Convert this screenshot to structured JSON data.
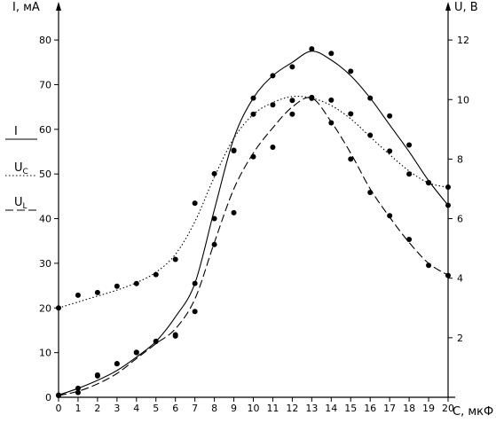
{
  "chart_data": {
    "type": "line",
    "xlabel": "С, мкФ",
    "y_left_label": "I, мА",
    "y_right_label": "U, В",
    "x_ticks": [
      0,
      1,
      2,
      3,
      4,
      5,
      6,
      7,
      8,
      9,
      10,
      11,
      12,
      13,
      14,
      15,
      16,
      17,
      18,
      19,
      20
    ],
    "y_left_ticks": [
      10,
      20,
      30,
      40,
      50,
      60,
      70,
      80
    ],
    "y_right_ticks": [
      2,
      4,
      6,
      8,
      10,
      12
    ],
    "xlim": [
      0,
      20
    ],
    "ylim_left": [
      0,
      83
    ],
    "ylim_right": [
      0,
      12.45
    ],
    "grid": false,
    "legend_position": "left",
    "series": [
      {
        "name": "I",
        "axis": "left",
        "line_style": "solid",
        "points": [
          [
            0,
            0.5
          ],
          [
            1,
            2
          ],
          [
            2,
            4.8
          ],
          [
            3,
            7.5
          ],
          [
            4,
            10
          ],
          [
            5,
            12.5
          ],
          [
            6,
            14
          ],
          [
            7,
            25.5
          ],
          [
            8,
            40
          ],
          [
            9,
            55.3
          ],
          [
            10,
            67
          ],
          [
            11,
            72
          ],
          [
            12,
            74
          ],
          [
            13,
            78
          ],
          [
            14,
            77
          ],
          [
            15,
            73
          ],
          [
            16,
            67
          ],
          [
            17,
            63
          ],
          [
            18,
            56.5
          ],
          [
            19,
            48
          ],
          [
            20,
            43
          ]
        ],
        "curve": [
          [
            0,
            0.5
          ],
          [
            1,
            2
          ],
          [
            2,
            3.8
          ],
          [
            3,
            6
          ],
          [
            4,
            9
          ],
          [
            5,
            12.5
          ],
          [
            6,
            18
          ],
          [
            7,
            25.5
          ],
          [
            8,
            42
          ],
          [
            9,
            58
          ],
          [
            10,
            67
          ],
          [
            11,
            72
          ],
          [
            12,
            75
          ],
          [
            13,
            77.5
          ],
          [
            14,
            75.5
          ],
          [
            15,
            72
          ],
          [
            16,
            67
          ],
          [
            17,
            61
          ],
          [
            18,
            55
          ],
          [
            19,
            48.5
          ],
          [
            20,
            43
          ]
        ]
      },
      {
        "name": "Uc",
        "axis": "right",
        "line_style": "dotted",
        "points": [
          [
            0,
            3
          ],
          [
            1,
            3.43
          ],
          [
            2,
            3.52
          ],
          [
            3,
            3.73
          ],
          [
            4,
            3.82
          ],
          [
            5,
            4.12
          ],
          [
            6,
            4.63
          ],
          [
            7,
            6.52
          ],
          [
            8,
            7.51
          ],
          [
            9,
            8.28
          ],
          [
            10,
            9.51
          ],
          [
            11,
            9.82
          ],
          [
            12,
            9.97
          ],
          [
            13,
            10.07
          ],
          [
            14,
            9.98
          ],
          [
            15,
            9.52
          ],
          [
            16,
            8.8
          ],
          [
            17,
            8.27
          ],
          [
            18,
            7.5
          ],
          [
            19,
            7.21
          ],
          [
            20,
            7.06
          ]
        ],
        "curve": [
          [
            0,
            3
          ],
          [
            1,
            3.2
          ],
          [
            2,
            3.4
          ],
          [
            3,
            3.6
          ],
          [
            4,
            3.85
          ],
          [
            5,
            4.2
          ],
          [
            6,
            4.8
          ],
          [
            7,
            5.9
          ],
          [
            8,
            7.4
          ],
          [
            9,
            8.7
          ],
          [
            10,
            9.5
          ],
          [
            11,
            9.9
          ],
          [
            12,
            10.1
          ],
          [
            13,
            10.05
          ],
          [
            14,
            9.8
          ],
          [
            15,
            9.35
          ],
          [
            16,
            8.75
          ],
          [
            17,
            8.15
          ],
          [
            18,
            7.6
          ],
          [
            19,
            7.2
          ],
          [
            20,
            7.05
          ]
        ]
      },
      {
        "name": "UL",
        "axis": "right",
        "line_style": "dashed",
        "points": [
          [
            0,
            0.06
          ],
          [
            1,
            0.16
          ],
          [
            2,
            0.75
          ],
          [
            3,
            1.13
          ],
          [
            4,
            1.51
          ],
          [
            5,
            1.88
          ],
          [
            6,
            2.06
          ],
          [
            7,
            2.88
          ],
          [
            8,
            5.13
          ],
          [
            9,
            6.2
          ],
          [
            10,
            8.08
          ],
          [
            11,
            8.4
          ],
          [
            12,
            9.51
          ],
          [
            13,
            10.04
          ],
          [
            14,
            9.22
          ],
          [
            15,
            8
          ],
          [
            16,
            6.88
          ],
          [
            17,
            6.1
          ],
          [
            18,
            5.3
          ],
          [
            19,
            4.43
          ],
          [
            20,
            4.09
          ]
        ],
        "curve": [
          [
            0,
            0.06
          ],
          [
            1,
            0.2
          ],
          [
            2,
            0.45
          ],
          [
            3,
            0.8
          ],
          [
            4,
            1.3
          ],
          [
            5,
            1.8
          ],
          [
            6,
            2.3
          ],
          [
            7,
            3.3
          ],
          [
            8,
            5.2
          ],
          [
            9,
            7
          ],
          [
            10,
            8.2
          ],
          [
            11,
            9.05
          ],
          [
            12,
            9.75
          ],
          [
            13,
            10.05
          ],
          [
            14,
            9.25
          ],
          [
            15,
            8.2
          ],
          [
            16,
            7
          ],
          [
            17,
            6.05
          ],
          [
            18,
            5.2
          ],
          [
            19,
            4.5
          ],
          [
            20,
            4.1
          ]
        ]
      }
    ],
    "legend": [
      {
        "label": "I",
        "line_style": "solid"
      },
      {
        "label": "U",
        "sub": "C",
        "line_style": "dotted"
      },
      {
        "label": "U",
        "sub": "L",
        "line_style": "dashed"
      }
    ]
  }
}
